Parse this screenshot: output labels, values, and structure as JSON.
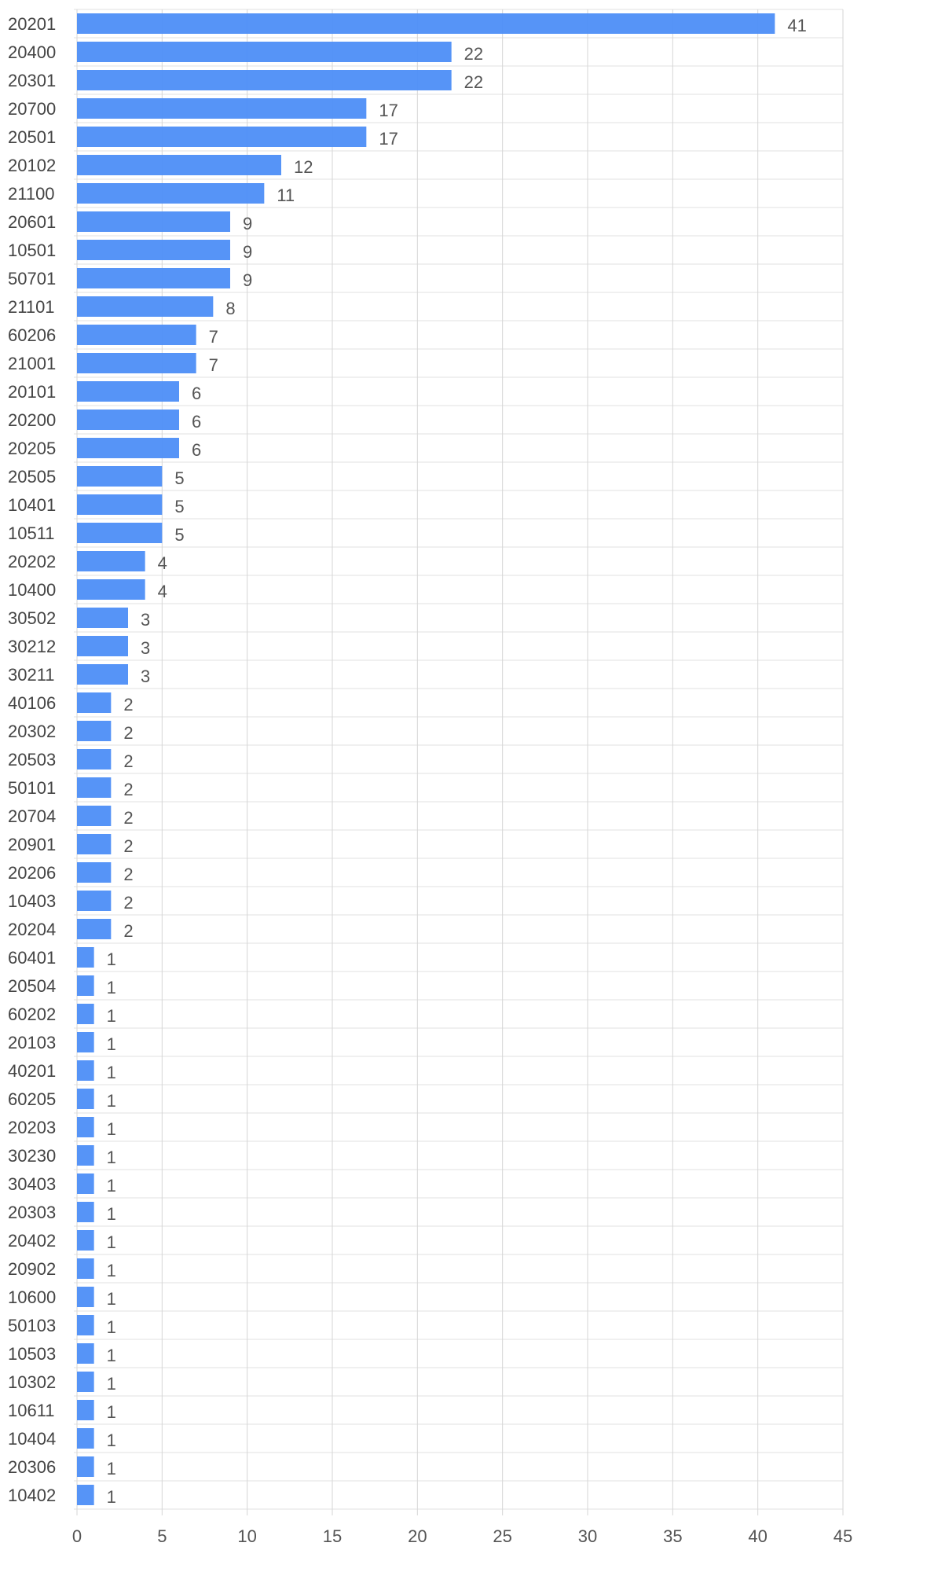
{
  "chart_data": {
    "type": "bar",
    "orientation": "horizontal",
    "categories": [
      "20201",
      "20400",
      "20301",
      "20700",
      "20501",
      "20102",
      "21100",
      "20601",
      "10501",
      "50701",
      "21101",
      "60206",
      "21001",
      "20101",
      "20200",
      "20205",
      "20505",
      "10401",
      "10511",
      "20202",
      "10400",
      "30502",
      "30212",
      "30211",
      "40106",
      "20302",
      "20503",
      "50101",
      "20704",
      "20901",
      "20206",
      "10403",
      "20204",
      "60401",
      "20504",
      "60202",
      "20103",
      "40201",
      "60205",
      "20203",
      "30230",
      "30403",
      "20303",
      "20402",
      "20902",
      "10600",
      "50103",
      "10503",
      "10302",
      "10611",
      "10404",
      "20306",
      "10402"
    ],
    "values": [
      41,
      22,
      22,
      17,
      17,
      12,
      11,
      9,
      9,
      9,
      8,
      7,
      7,
      6,
      6,
      6,
      5,
      5,
      5,
      4,
      4,
      3,
      3,
      3,
      2,
      2,
      2,
      2,
      2,
      2,
      2,
      2,
      2,
      1,
      1,
      1,
      1,
      1,
      1,
      1,
      1,
      1,
      1,
      1,
      1,
      1,
      1,
      1,
      1,
      1,
      1,
      1,
      1
    ],
    "xlim": [
      0,
      45
    ],
    "xticks": [
      0,
      5,
      10,
      15,
      20,
      25,
      30,
      35,
      40,
      45
    ],
    "grid": true,
    "bar_color": "#4d8ef7",
    "title": "",
    "xlabel": "",
    "ylabel": ""
  }
}
